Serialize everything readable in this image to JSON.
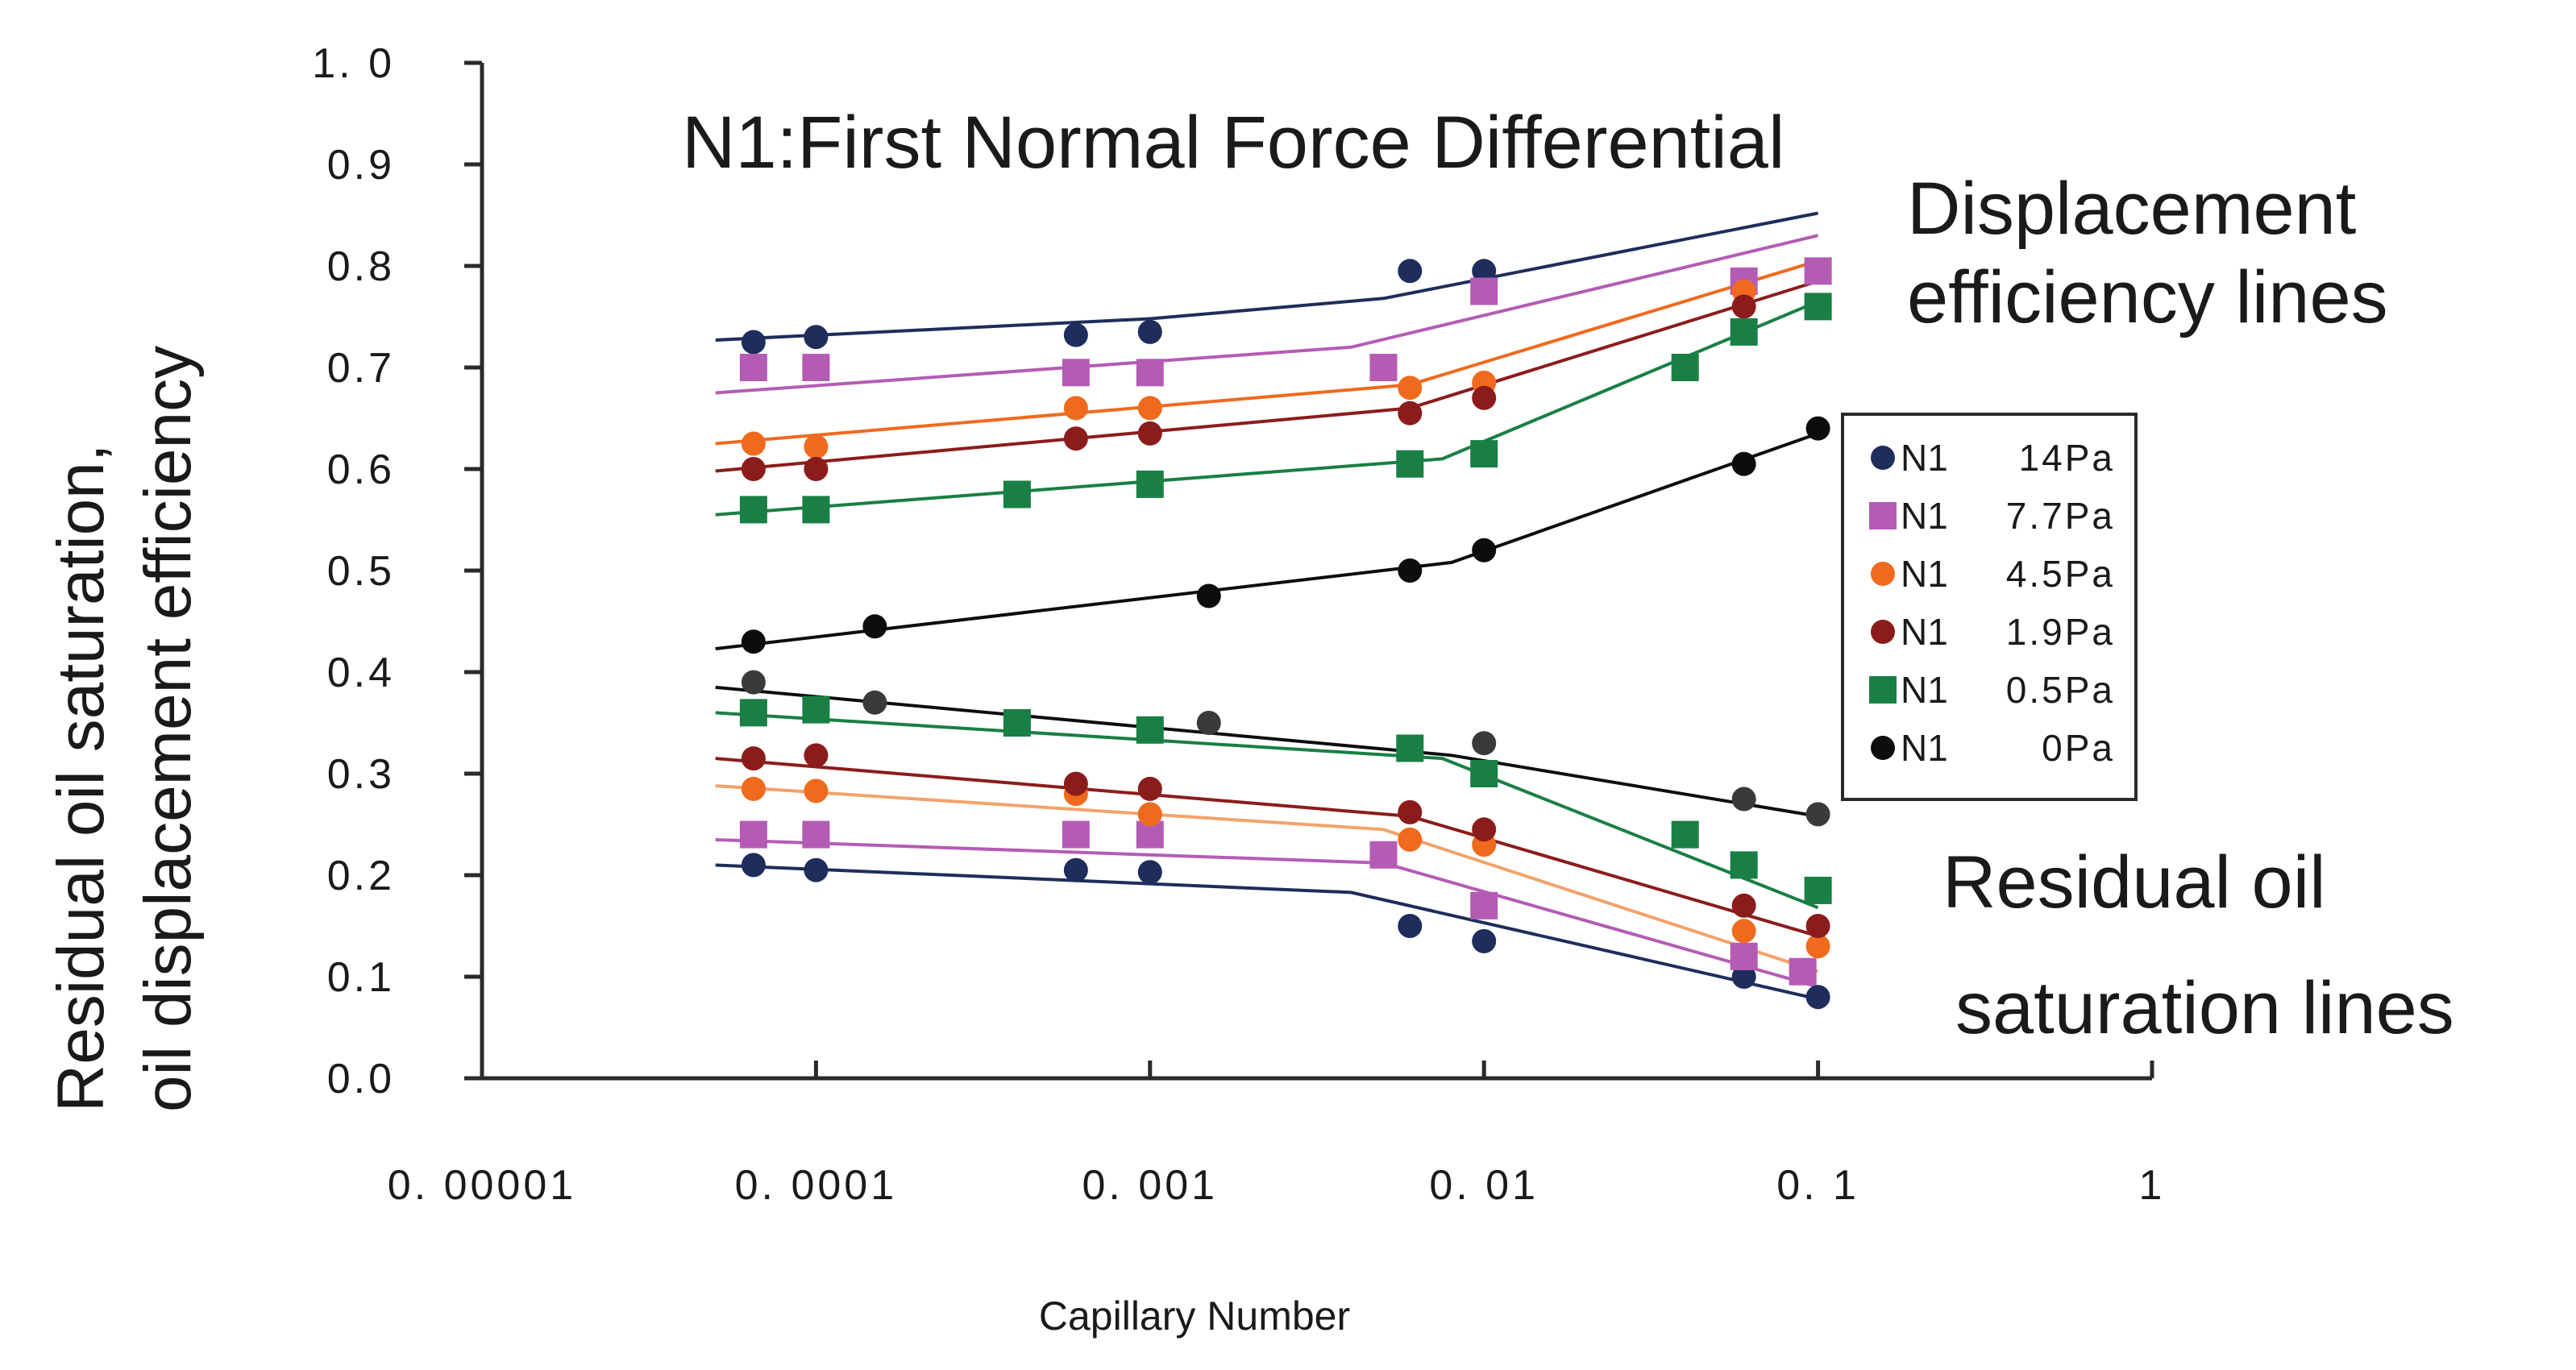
{
  "chart_data": {
    "type": "scatter",
    "title": "N1:First Normal Force Differential",
    "xlabel": "Capillary Number",
    "ylabel_line1": "Residual oil saturation,",
    "ylabel_line2": "oil displacement efficiency",
    "x_scale": "log",
    "xlim": [
      1e-05,
      1
    ],
    "ylim": [
      0,
      1
    ],
    "x_ticks": [
      1e-05,
      0.0001,
      0.001,
      0.01,
      0.1,
      1
    ],
    "x_tick_labels": [
      "0. 00001",
      "0. 0001",
      "0. 001",
      "0. 01",
      "0. 1",
      "1"
    ],
    "y_ticks": [
      0,
      0.1,
      0.2,
      0.3,
      0.4,
      0.5,
      0.6,
      0.7,
      0.8,
      0.9,
      1.0
    ],
    "y_tick_labels": [
      "0.0",
      "0.1",
      "0.2",
      "0.3",
      "0.4",
      "0.5",
      "0.6",
      "0.7",
      "0.8",
      "0.9",
      "1. 0"
    ],
    "annotations": {
      "displacement_line1": "Displacement",
      "displacement_line2": "efficiency lines",
      "residual_line1": "Residual oil",
      "residual_line2": "saturation lines"
    },
    "legend_position": "right",
    "series": [
      {
        "name": "N1 14Pa",
        "label": "N1",
        "value_label": "14Pa",
        "color": "#1f2d5c",
        "marker": "circle",
        "displacement_points": [
          [
            6.5e-05,
            0.725
          ],
          [
            0.0001,
            0.73
          ],
          [
            0.0006,
            0.732
          ],
          [
            0.001,
            0.735
          ],
          [
            0.006,
            0.795
          ],
          [
            0.01,
            0.795
          ]
        ],
        "displacement_fit": [
          [
            5e-05,
            0.727
          ],
          [
            0.001,
            0.748
          ],
          [
            0.005,
            0.768
          ],
          [
            0.1,
            0.852
          ]
        ],
        "residual_points": [
          [
            6.5e-05,
            0.21
          ],
          [
            0.0001,
            0.205
          ],
          [
            0.0006,
            0.205
          ],
          [
            0.001,
            0.203
          ],
          [
            0.006,
            0.15
          ],
          [
            0.01,
            0.135
          ],
          [
            0.06,
            0.1
          ],
          [
            0.1,
            0.08
          ]
        ],
        "residual_fit": [
          [
            5e-05,
            0.21
          ],
          [
            0.004,
            0.183
          ],
          [
            0.1,
            0.078
          ]
        ]
      },
      {
        "name": "N1 7.7Pa",
        "label": "N1",
        "value_label": "7.7Pa",
        "color": "#b45cb4",
        "marker": "square",
        "displacement_points": [
          [
            6.5e-05,
            0.7
          ],
          [
            0.0001,
            0.7
          ],
          [
            0.0006,
            0.695
          ],
          [
            0.001,
            0.695
          ],
          [
            0.005,
            0.7
          ],
          [
            0.01,
            0.775
          ],
          [
            0.06,
            0.785
          ],
          [
            0.1,
            0.795
          ]
        ],
        "displacement_fit": [
          [
            5e-05,
            0.675
          ],
          [
            0.004,
            0.72
          ],
          [
            0.1,
            0.83
          ]
        ],
        "residual_points": [
          [
            6.5e-05,
            0.24
          ],
          [
            0.0001,
            0.24
          ],
          [
            0.0006,
            0.24
          ],
          [
            0.001,
            0.24
          ],
          [
            0.005,
            0.22
          ],
          [
            0.01,
            0.17
          ],
          [
            0.06,
            0.12
          ],
          [
            0.09,
            0.105
          ]
        ],
        "residual_fit": [
          [
            5e-05,
            0.235
          ],
          [
            0.005,
            0.212
          ],
          [
            0.1,
            0.09
          ]
        ]
      },
      {
        "name": "N1 4.5Pa",
        "label": "N1",
        "value_label": "4.5Pa",
        "color": "#f06a1e",
        "marker": "circle",
        "displacement_points": [
          [
            6.5e-05,
            0.625
          ],
          [
            0.0001,
            0.622
          ],
          [
            0.0006,
            0.66
          ],
          [
            0.001,
            0.66
          ],
          [
            0.006,
            0.68
          ],
          [
            0.01,
            0.685
          ],
          [
            0.06,
            0.775
          ]
        ],
        "displacement_fit": [
          [
            5e-05,
            0.625
          ],
          [
            0.006,
            0.683
          ],
          [
            0.1,
            0.805
          ]
        ],
        "residual_points": [
          [
            6.5e-05,
            0.285
          ],
          [
            0.0001,
            0.283
          ],
          [
            0.0006,
            0.28
          ],
          [
            0.001,
            0.26
          ],
          [
            0.006,
            0.235
          ],
          [
            0.01,
            0.23
          ],
          [
            0.06,
            0.145
          ],
          [
            0.1,
            0.13
          ]
        ],
        "residual_fit": [
          [
            5e-05,
            0.288
          ],
          [
            0.005,
            0.245
          ],
          [
            0.1,
            0.105
          ]
        ]
      },
      {
        "name": "N1 1.9Pa",
        "label": "N1",
        "value_label": "1.9Pa",
        "color": "#8c1c1c",
        "marker": "circle",
        "displacement_points": [
          [
            6.5e-05,
            0.6
          ],
          [
            0.0001,
            0.6
          ],
          [
            0.0006,
            0.63
          ],
          [
            0.001,
            0.635
          ],
          [
            0.006,
            0.655
          ],
          [
            0.01,
            0.67
          ],
          [
            0.06,
            0.76
          ]
        ],
        "displacement_fit": [
          [
            5e-05,
            0.598
          ],
          [
            0.006,
            0.66
          ],
          [
            0.1,
            0.785
          ]
        ],
        "residual_points": [
          [
            6.5e-05,
            0.315
          ],
          [
            0.0001,
            0.318
          ],
          [
            0.0006,
            0.29
          ],
          [
            0.001,
            0.285
          ],
          [
            0.006,
            0.262
          ],
          [
            0.01,
            0.245
          ],
          [
            0.06,
            0.17
          ],
          [
            0.1,
            0.15
          ]
        ],
        "residual_fit": [
          [
            5e-05,
            0.315
          ],
          [
            0.006,
            0.258
          ],
          [
            0.1,
            0.14
          ]
        ]
      },
      {
        "name": "N1 0.5Pa",
        "label": "N1",
        "value_label": "0.5Pa",
        "color": "#1a7f45",
        "marker": "square",
        "displacement_points": [
          [
            6.5e-05,
            0.56
          ],
          [
            0.0001,
            0.56
          ],
          [
            0.0004,
            0.575
          ],
          [
            0.001,
            0.585
          ],
          [
            0.006,
            0.605
          ],
          [
            0.01,
            0.615
          ],
          [
            0.04,
            0.7
          ],
          [
            0.06,
            0.735
          ],
          [
            0.1,
            0.76
          ]
        ],
        "displacement_fit": [
          [
            5e-05,
            0.555
          ],
          [
            0.0075,
            0.61
          ],
          [
            0.1,
            0.765
          ]
        ],
        "residual_points": [
          [
            6.5e-05,
            0.36
          ],
          [
            0.0001,
            0.363
          ],
          [
            0.0004,
            0.35
          ],
          [
            0.001,
            0.343
          ],
          [
            0.006,
            0.325
          ],
          [
            0.01,
            0.3
          ],
          [
            0.04,
            0.24
          ],
          [
            0.06,
            0.21
          ],
          [
            0.1,
            0.185
          ]
        ],
        "residual_fit": [
          [
            5e-05,
            0.36
          ],
          [
            0.0075,
            0.315
          ],
          [
            0.1,
            0.168
          ]
        ]
      },
      {
        "name": "N1 0Pa",
        "label": "N1",
        "value_label": "0Pa",
        "color": "#0d0d0d",
        "marker": "circle",
        "displacement_points": [
          [
            6.5e-05,
            0.43
          ],
          [
            0.00015,
            0.445
          ],
          [
            0.0015,
            0.475
          ],
          [
            0.006,
            0.5
          ],
          [
            0.01,
            0.52
          ],
          [
            0.06,
            0.605
          ],
          [
            0.1,
            0.64
          ]
        ],
        "displacement_fit": [
          [
            5e-05,
            0.423
          ],
          [
            0.008,
            0.508
          ],
          [
            0.1,
            0.635
          ]
        ],
        "residual_points": [
          [
            6.5e-05,
            0.39
          ],
          [
            0.00015,
            0.37
          ],
          [
            0.0015,
            0.35
          ],
          [
            0.01,
            0.33
          ],
          [
            0.06,
            0.275
          ],
          [
            0.1,
            0.26
          ]
        ],
        "residual_fit": [
          [
            5e-05,
            0.385
          ],
          [
            0.008,
            0.318
          ],
          [
            0.1,
            0.258
          ]
        ]
      }
    ]
  }
}
